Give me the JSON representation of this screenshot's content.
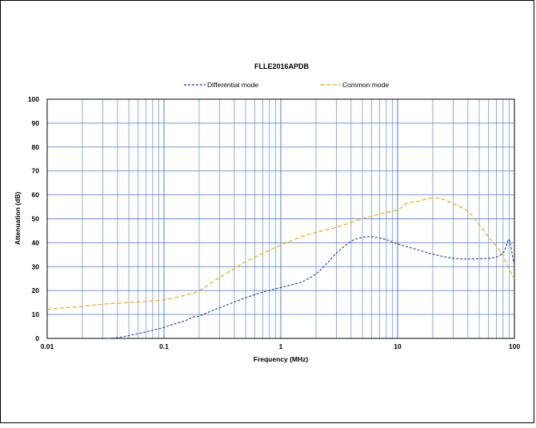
{
  "chart_data": {
    "type": "line",
    "title": "FLLE2016APDB",
    "xlabel": "Frequency (MHz)",
    "ylabel": "Attenuation (dB)",
    "xscale": "log",
    "xlim": [
      0.01,
      100
    ],
    "ylim": [
      0,
      100
    ],
    "grid": true,
    "legend_position": "top-center",
    "x_ticks": [
      {
        "value": 0.01,
        "label": "0.01"
      },
      {
        "value": 0.1,
        "label": "0.1"
      },
      {
        "value": 1,
        "label": "1"
      },
      {
        "value": 10,
        "label": "10"
      },
      {
        "value": 100,
        "label": "100"
      }
    ],
    "y_ticks": [
      {
        "value": 0,
        "label": "0"
      },
      {
        "value": 10,
        "label": "10"
      },
      {
        "value": 20,
        "label": "20"
      },
      {
        "value": 30,
        "label": "30"
      },
      {
        "value": 40,
        "label": "40"
      },
      {
        "value": 50,
        "label": "50"
      },
      {
        "value": 60,
        "label": "60"
      },
      {
        "value": 70,
        "label": "70"
      },
      {
        "value": 80,
        "label": "80"
      },
      {
        "value": 90,
        "label": "90"
      },
      {
        "value": 100,
        "label": "100"
      }
    ],
    "series": [
      {
        "name": "Differential mode",
        "color": "#1f3b99",
        "style": "dashed",
        "x": [
          0.033,
          0.04,
          0.05,
          0.06,
          0.07,
          0.08,
          0.1,
          0.12,
          0.15,
          0.18,
          0.2,
          0.25,
          0.3,
          0.4,
          0.5,
          0.7,
          1.0,
          1.5,
          2.0,
          2.5,
          3.0,
          4.0,
          5.0,
          6.0,
          8.0,
          10,
          15,
          20,
          30,
          40,
          50,
          60,
          70,
          80,
          85,
          90,
          95,
          100
        ],
        "y": [
          0,
          0.3,
          1.2,
          2.0,
          2.7,
          3.4,
          4.6,
          5.9,
          7.3,
          9.0,
          9.3,
          11.3,
          12.8,
          15.2,
          17.0,
          19.3,
          21.3,
          23.6,
          27.0,
          31.5,
          35.7,
          40.6,
          42.2,
          42.5,
          41.3,
          39.5,
          37.0,
          35.2,
          33.5,
          33.2,
          33.3,
          33.5,
          34.0,
          35.8,
          38.5,
          41.5,
          36.0,
          30.5
        ]
      },
      {
        "name": "Common mode",
        "color": "#f2a900",
        "style": "dashed",
        "x": [
          0.01,
          0.015,
          0.02,
          0.03,
          0.05,
          0.07,
          0.1,
          0.15,
          0.2,
          0.3,
          0.5,
          0.7,
          1.0,
          1.5,
          2.0,
          3.0,
          5.0,
          7.0,
          10,
          12,
          15,
          20,
          25,
          30,
          40,
          50,
          60,
          70,
          80,
          90,
          100
        ],
        "y": [
          12.2,
          12.9,
          13.4,
          14.3,
          15.0,
          15.5,
          16.2,
          18.0,
          20.0,
          25.5,
          32.0,
          35.5,
          39.0,
          42.5,
          44.3,
          46.5,
          50.0,
          52.0,
          53.8,
          56.5,
          57.3,
          58.8,
          58.0,
          56.3,
          53.0,
          47.5,
          42.5,
          38.5,
          34.5,
          29.0,
          25.0
        ]
      }
    ]
  }
}
